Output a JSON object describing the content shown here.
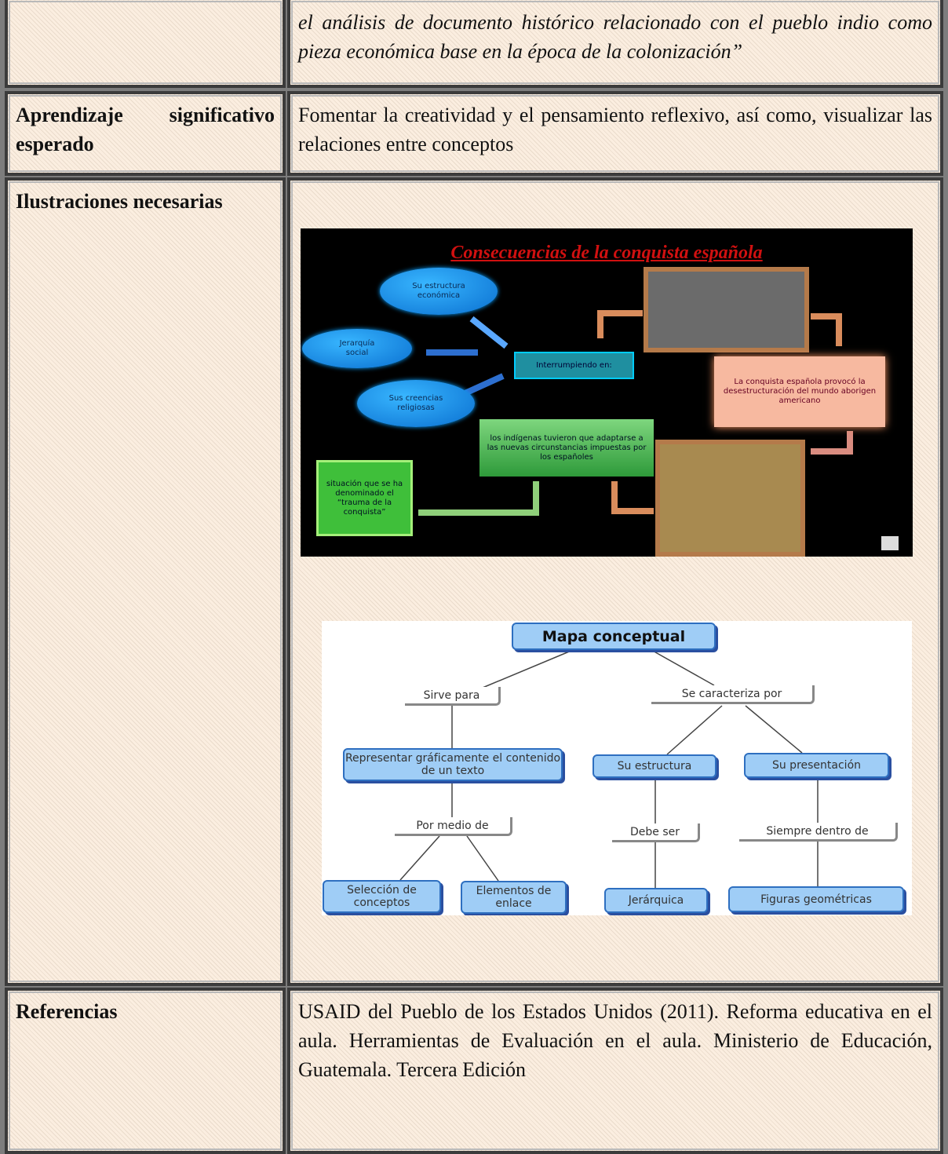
{
  "table": {
    "rows": [
      {
        "content": "el análisis de documento histórico relacionado con el pueblo indio como pieza económica base en la época de la colonización”"
      },
      {
        "label": "Aprendizaje significativo esperado",
        "content": "Fomentar la creatividad y el pensamiento reflexivo, así como, visualizar las relaciones entre conceptos"
      },
      {
        "label": "Ilustraciones necesarias",
        "illustrations": [
          {
            "title": "Consecuencias de la conquista española",
            "nodes": [
              "Su estructura económica",
              "Jerarquía social",
              "Sus creencias religiosas",
              "Interrumpiendo en:",
              "La conquista española provocó la desestructuración del mundo aborigen americano",
              "los indígenas tuvieron que adaptarse a las nuevas circunstancias impuestas por los españoles",
              "situación que se ha denominado el “trauma de la conquista”"
            ]
          },
          {
            "title": "Mapa conceptual",
            "nodes": [
              "Sirve para",
              "Se caracteriza por",
              "Representar gráficamente el contenido de un texto",
              "Su estructura",
              "Su presentación",
              "Por medio de",
              "Debe ser",
              "Siempre dentro de",
              "Selección de conceptos",
              "Elementos de enlace",
              "Jerárquica",
              "Figuras geométricas"
            ]
          }
        ]
      },
      {
        "label": "Referencias",
        "content": "USAID del Pueblo de los Estados Unidos (2011). Reforma educativa en el aula. Herramientas de Evaluación en el aula. Ministerio de Educación, Guatemala. Tercera Edición"
      }
    ]
  }
}
